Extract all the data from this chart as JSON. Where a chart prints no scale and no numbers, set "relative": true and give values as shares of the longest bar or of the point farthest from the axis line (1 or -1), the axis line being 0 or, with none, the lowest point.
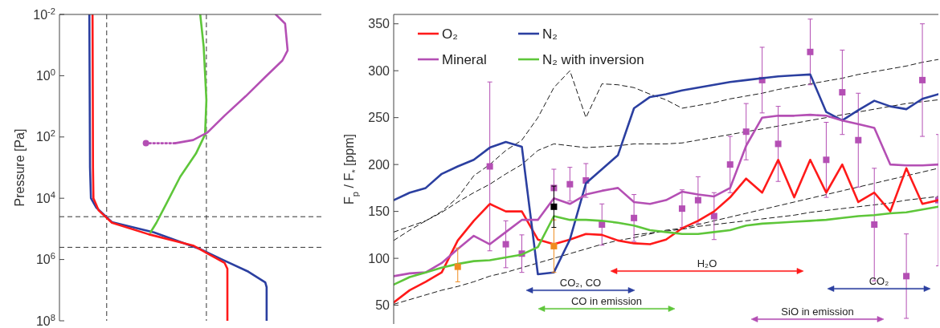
{
  "chart_data": [
    {
      "type": "line",
      "ylabel": "Pressure [Pa]",
      "log": "y",
      "orientation": "horizontal",
      "relative": true,
      "ylim": [
        100000000,
        0.01
      ],
      "tick_labels": "y",
      "yticks": [
        {
          "value": 0.01,
          "label": "10$^{-2}$"
        },
        {
          "value": 1,
          "label": "10$^{0}$"
        },
        {
          "value": 100,
          "label": "10$^{2}$"
        },
        {
          "value": 10000,
          "label": "10$^{4}$"
        },
        {
          "value": 1000000,
          "label": "10$^{6}$"
        },
        {
          "value": 100000000,
          "label": "10$^{8}$"
        }
      ],
      "ref_lines": [
        {
          "axis": "x",
          "value": 0.207,
          "line_style": "dashed",
          "color": "#333333"
        },
        {
          "axis": "x",
          "value": 0.644,
          "line_style": "dashed",
          "color": "#333333"
        },
        {
          "axis": "y",
          "value": 40000,
          "line_style": "dashed",
          "color": "#333333"
        },
        {
          "axis": "y",
          "value": 400000,
          "line_style": "dashed",
          "color": "#333333"
        }
      ],
      "series": [
        {
          "color": "#2b3fa0",
          "x": [
            0.01,
            1000,
            10000,
            20000,
            42000,
            60000,
            130000,
            470000,
            1000000,
            2500000,
            5600000,
            8000000,
            100000000
          ],
          "values": [
            0.131,
            0.134,
            0.138,
            0.161,
            0.207,
            0.23,
            0.414,
            0.621,
            0.713,
            0.828,
            0.902,
            0.908,
            0.908
          ]
        },
        {
          "color": "#ff1a1a",
          "x": [
            0.01,
            1000,
            10000,
            25000,
            63000,
            150000,
            350000,
            840000,
            1300000,
            2000000,
            100000000
          ],
          "values": [
            0.145,
            0.147,
            0.149,
            0.172,
            0.23,
            0.391,
            0.586,
            0.678,
            0.724,
            0.736,
            0.736
          ]
        },
        {
          "color": "#5ec63a",
          "x": [
            0.01,
            0.11,
            6.3,
            84,
            350,
            2000,
            20000,
            63000,
            130000
          ],
          "values": [
            0.617,
            0.632,
            0.644,
            0.638,
            0.598,
            0.529,
            0.46,
            0.425,
            0.399
          ]
        },
        {
          "color": "#b44fb4",
          "x": [
            0.01,
            0.02,
            0.15,
            0.32,
            1.1,
            4.7,
            20,
            71,
            126,
            160
          ],
          "values": [
            0.948,
            0.989,
            1,
            0.977,
            0.902,
            0.816,
            0.724,
            0.649,
            0.586,
            0.506
          ]
        },
        {
          "color": "#b44fb4",
          "line_style": "dotted",
          "x": [
            160,
            160
          ],
          "values": [
            0.506,
            0.379
          ]
        },
        {
          "type": "scatter",
          "color": "#b44fb4",
          "marker": "circle",
          "x": [
            160
          ],
          "values": [
            0.379
          ]
        }
      ]
    },
    {
      "type": "line",
      "ylabel": "F$_{p}$ / F$_{*}$ [ppm]",
      "ylim": [
        30,
        360
      ],
      "yticks": [
        50,
        100,
        150,
        200,
        250,
        300,
        350
      ],
      "tick_labels": "y",
      "legend": "top left",
      "categories": [
        null,
        null,
        null,
        null,
        null,
        null,
        null,
        null,
        null,
        null,
        null,
        null,
        null,
        null,
        null,
        null,
        null,
        null,
        null,
        null,
        null,
        null,
        null,
        null,
        null,
        null,
        null,
        null,
        null,
        null,
        null,
        null,
        null,
        null,
        null
      ],
      "annotations": [
        "CO₂, CO",
        "H₂O",
        "CO in emission",
        "CO₂",
        "SiO in emission"
      ],
      "series": [
        {
          "color": "#000000",
          "line_style": "dashed",
          "values": [
            128,
            134,
            140,
            150,
            165,
            188,
            200,
            215,
            226,
            250,
            282,
            300,
            250,
            286,
            285,
            282,
            275,
            269,
            260,
            263,
            266,
            270,
            273,
            276,
            280,
            283,
            286,
            289,
            292,
            296,
            299,
            302,
            305,
            309,
            312
          ]
        },
        {
          "color": "#000000",
          "line_style": "dashed",
          "values": [
            119,
            130,
            140,
            149,
            160,
            170,
            179,
            190,
            200,
            215,
            222,
            220,
            218,
            219,
            220,
            222,
            222,
            222,
            223,
            226,
            229,
            232,
            235,
            238,
            241,
            244,
            247,
            250,
            253,
            256,
            259,
            262,
            265,
            267,
            269
          ]
        },
        {
          "color": "#000000",
          "line_style": "dashed",
          "values": [
            51,
            56,
            61,
            66,
            70,
            75,
            81,
            85,
            90,
            95,
            100,
            105,
            110,
            115,
            119,
            122,
            126,
            130,
            132,
            136,
            140,
            144,
            148,
            152,
            156,
            160,
            164,
            168,
            172,
            176,
            180,
            184,
            188,
            192,
            196
          ]
        },
        {
          "color": "#000000",
          "line_style": "dashed",
          "values": [
            null,
            null,
            null,
            null,
            null,
            null,
            null,
            null,
            null,
            null,
            null,
            null,
            null,
            null,
            null,
            125,
            127,
            129,
            131,
            134,
            136,
            138,
            140,
            142,
            144,
            146,
            149,
            151,
            153,
            155,
            157,
            159,
            162,
            164,
            166
          ]
        },
        {
          "type": "scatter",
          "color": "#b44fb4",
          "marker": "square",
          "values": [
            null,
            null,
            null,
            null,
            null,
            null,
            198,
            115,
            105,
            null,
            175,
            179,
            183,
            136,
            null,
            143,
            null,
            null,
            153,
            162,
            145,
            200,
            235,
            290,
            222,
            null,
            320,
            205,
            277,
            226,
            136,
            null,
            81,
            290,
            162
          ],
          "errors": [
            null,
            null,
            null,
            null,
            null,
            null,
            90,
            25,
            20,
            null,
            20,
            18,
            18,
            22,
            null,
            25,
            null,
            null,
            20,
            25,
            25,
            30,
            30,
            35,
            40,
            null,
            35,
            40,
            45,
            50,
            60,
            null,
            45,
            60,
            70
          ]
        },
        {
          "name": "O₂",
          "color": "#ff1a1a",
          "values": [
            53,
            66,
            75,
            85,
            119,
            140,
            158,
            150,
            150,
            120,
            115,
            120,
            126,
            125,
            119,
            116,
            115,
            120,
            132,
            140,
            150,
            165,
            185,
            170,
            205,
            165,
            205,
            170,
            200,
            160,
            170,
            150,
            196,
            158,
            162
          ]
        },
        {
          "name": "N₂",
          "color": "#2b3fa0",
          "values": [
            162,
            170,
            175,
            190,
            198,
            205,
            218,
            224,
            219,
            83,
            85,
            120,
            180,
            195,
            210,
            260,
            272,
            275,
            279,
            282,
            285,
            288,
            290,
            292,
            294,
            295,
            296,
            256,
            247,
            258,
            268,
            262,
            259,
            270,
            275
          ]
        },
        {
          "name": "Mineral",
          "color": "#b44fb4",
          "values": [
            81,
            84,
            85,
            95,
            110,
            124,
            115,
            128,
            141,
            141,
            164,
            158,
            168,
            172,
            175,
            160,
            158,
            162,
            171,
            168,
            166,
            175,
            220,
            250,
            252,
            252,
            253,
            252,
            247,
            243,
            239,
            200,
            199,
            199,
            200
          ]
        },
        {
          "name": "N₂ with inversion",
          "color": "#5ec63a",
          "values": [
            72,
            80,
            85,
            90,
            94,
            97,
            98,
            101,
            104,
            112,
            145,
            141,
            141,
            140,
            138,
            135,
            130,
            128,
            126,
            126,
            128,
            130,
            135,
            137,
            138,
            139,
            140,
            141,
            143,
            145,
            146,
            148,
            149,
            152,
            155
          ]
        },
        {
          "type": "scatter",
          "color": "#f08c1e",
          "marker": "square",
          "values": [
            null,
            null,
            null,
            null,
            91,
            null,
            null,
            null,
            null,
            null,
            113,
            null,
            null,
            null,
            null,
            null,
            null,
            null,
            null,
            null,
            null,
            null,
            null,
            null,
            null,
            null,
            null,
            null,
            null,
            null,
            null,
            null,
            null,
            null,
            null
          ],
          "errors": [
            null,
            null,
            null,
            null,
            [
              75,
              111
            ],
            null,
            null,
            null,
            null,
            null,
            [
              85,
              141
            ],
            null,
            null,
            null,
            null,
            null,
            null,
            null,
            null,
            null,
            null,
            null,
            null,
            null,
            null,
            null,
            null,
            null,
            null,
            null,
            null,
            null,
            null,
            null,
            null
          ]
        },
        {
          "type": "scatter",
          "color": "#000000",
          "marker": "square",
          "values": [
            null,
            null,
            null,
            null,
            null,
            null,
            null,
            null,
            null,
            null,
            155,
            null,
            null,
            null,
            null,
            null,
            null,
            null,
            null,
            null,
            null,
            null,
            null,
            null,
            null,
            null,
            null,
            null,
            null,
            null,
            null,
            null,
            null,
            null,
            null
          ],
          "errors": [
            null,
            null,
            null,
            null,
            null,
            null,
            null,
            null,
            null,
            null,
            22,
            null,
            null,
            null,
            null,
            null,
            null,
            null,
            null,
            null,
            null,
            null,
            null,
            null,
            null,
            null,
            null,
            null,
            null,
            null,
            null,
            null,
            null,
            null,
            null
          ]
        }
      ]
    }
  ]
}
